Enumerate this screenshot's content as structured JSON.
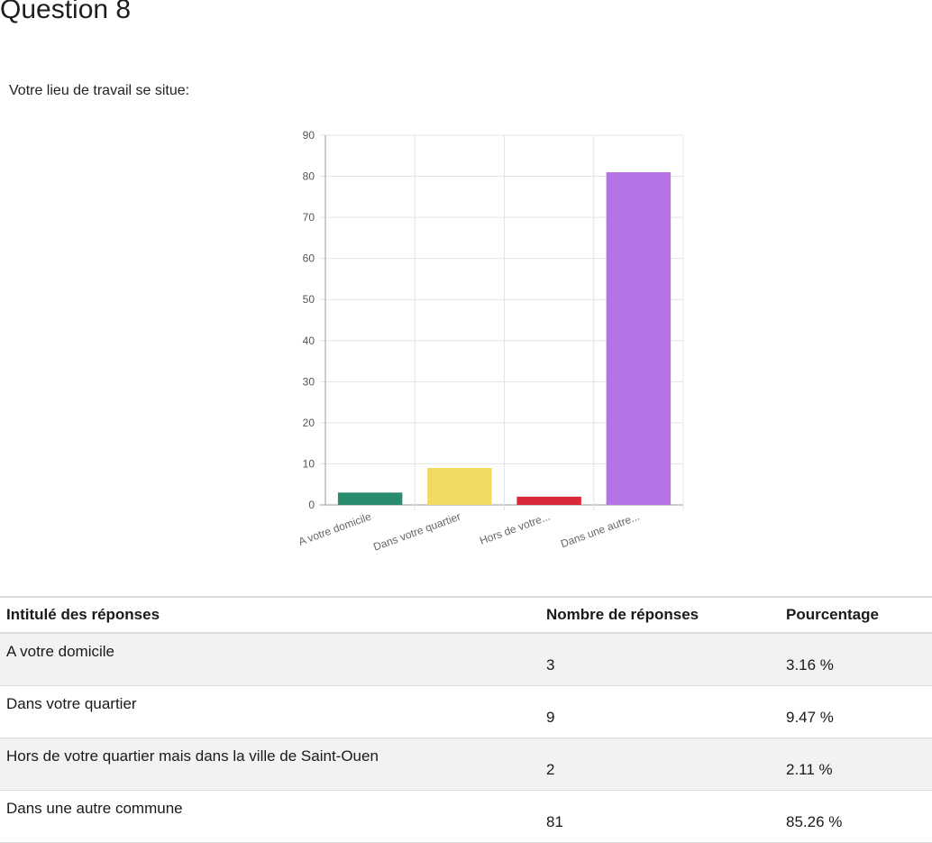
{
  "page": {
    "title": "Question 8",
    "question": "Votre lieu de travail se situe:"
  },
  "chart_data": {
    "type": "bar",
    "categories": [
      "A votre domicile",
      "Dans votre quartier",
      "Hors de votre...",
      "Dans une autre..."
    ],
    "values": [
      3,
      9,
      2,
      81
    ],
    "colors": [
      "#2a8c6e",
      "#f0da64",
      "#d8283a",
      "#b574e6"
    ],
    "ylim": [
      0,
      90
    ],
    "yticks": [
      0,
      10,
      20,
      30,
      40,
      50,
      60,
      70,
      80,
      90
    ],
    "grid": true,
    "title": "",
    "xlabel": "",
    "ylabel": ""
  },
  "table": {
    "headers": [
      "Intitulé des réponses",
      "Nombre de réponses",
      "Pourcentage"
    ],
    "rows": [
      {
        "label": "A votre domicile",
        "count": "3",
        "percent": "3.16 %"
      },
      {
        "label": "Dans votre quartier",
        "count": "9",
        "percent": "9.47 %"
      },
      {
        "label": "Hors de votre quartier mais dans la ville de Saint-Ouen",
        "count": "2",
        "percent": "2.11 %"
      },
      {
        "label": "Dans une autre commune",
        "count": "81",
        "percent": "85.26 %"
      }
    ]
  }
}
